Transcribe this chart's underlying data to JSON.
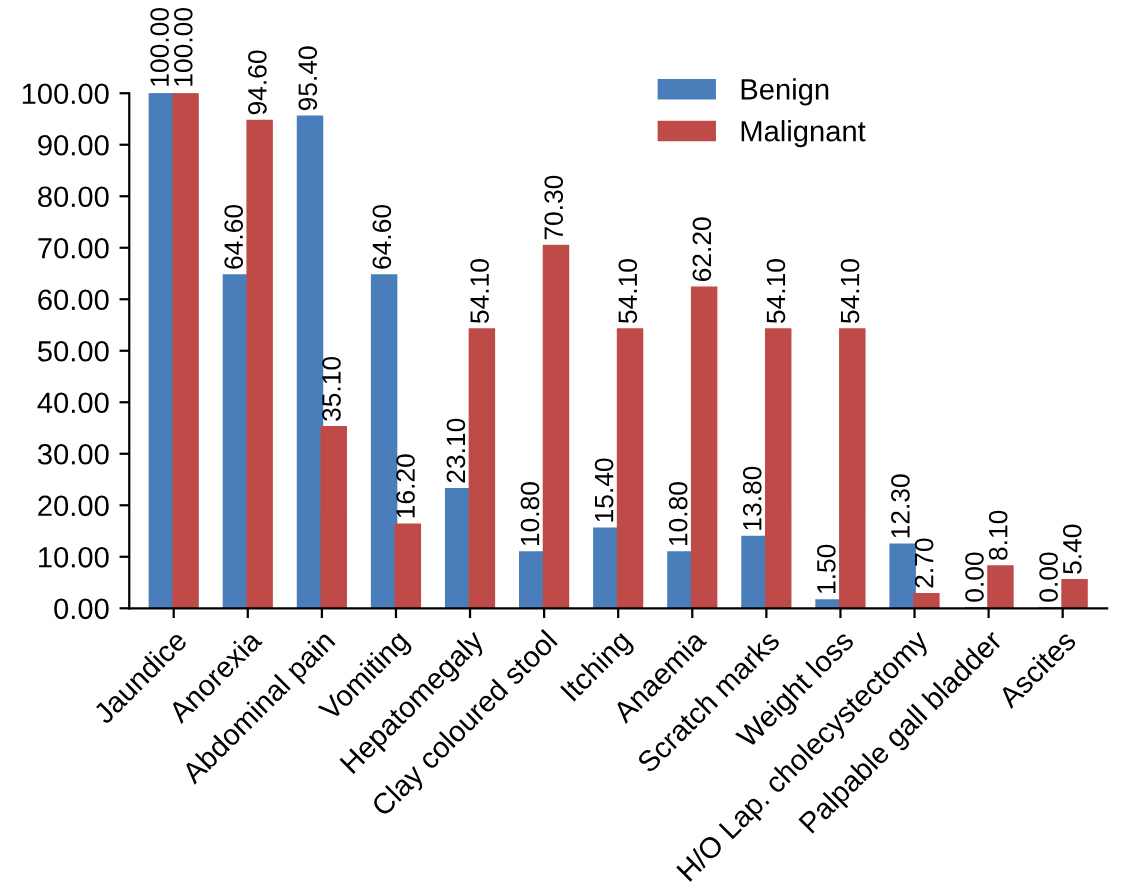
{
  "chart_data": {
    "type": "bar",
    "categories": [
      "Jaundice",
      "Anorexia",
      "Abdominal pain",
      "Vomiting",
      "Hepatomegaly",
      "Clay coloured stool",
      "Itching",
      "Anaemia",
      "Scratch marks",
      "Weight loss",
      "H/O Lap. cholecystectomy",
      "Palpable gall bladder",
      "Ascites"
    ],
    "series": [
      {
        "name": "Benign",
        "color": "#4a7ebb",
        "values": [
          100.0,
          64.6,
          95.4,
          64.6,
          23.1,
          10.8,
          15.4,
          10.8,
          13.8,
          1.5,
          12.3,
          0.0,
          0.0
        ],
        "value_labels": [
          "100.00",
          "64.60",
          "95.40",
          "64.60",
          "23.10",
          "10.80",
          "15.40",
          "10.80",
          "13.80",
          "1.50",
          "12.30",
          "0.00",
          "0.00"
        ]
      },
      {
        "name": "Malignant",
        "color": "#be4b48",
        "values": [
          100.0,
          94.6,
          35.1,
          16.2,
          54.1,
          70.3,
          54.1,
          62.2,
          54.1,
          54.1,
          2.7,
          8.1,
          5.4
        ],
        "value_labels": [
          "100.00",
          "94.60",
          "35.10",
          "16.20",
          "54.10",
          "70.30",
          "54.10",
          "62.20",
          "54.10",
          "54.10",
          "2.70",
          "8.10",
          "5.40"
        ]
      }
    ],
    "ylim": [
      0,
      100
    ],
    "yticks": [
      {
        "value": 0,
        "label": "0.00"
      },
      {
        "value": 10,
        "label": "10.00"
      },
      {
        "value": 20,
        "label": "20.00"
      },
      {
        "value": 30,
        "label": "30.00"
      },
      {
        "value": 40,
        "label": "40.00"
      },
      {
        "value": 50,
        "label": "50.00"
      },
      {
        "value": 60,
        "label": "60.00"
      },
      {
        "value": 70,
        "label": "70.00"
      },
      {
        "value": 80,
        "label": "80.00"
      },
      {
        "value": 90,
        "label": "90.00"
      },
      {
        "value": 100,
        "label": "100.00"
      }
    ],
    "legend": "top right",
    "grid": false
  }
}
